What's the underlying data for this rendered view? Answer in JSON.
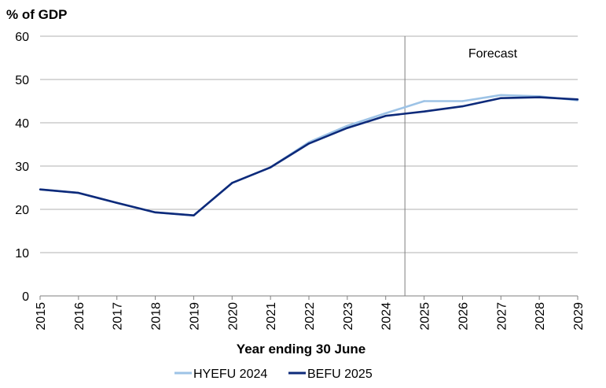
{
  "chart_data": {
    "type": "line",
    "title": "",
    "ylabel": "% of GDP",
    "xlabel": "Year ending 30 June",
    "ylim": [
      0,
      60
    ],
    "yticks": [
      0,
      10,
      20,
      30,
      40,
      50,
      60
    ],
    "x": [
      "2015",
      "2016",
      "2017",
      "2018",
      "2019",
      "2020",
      "2021",
      "2022",
      "2023",
      "2024",
      "2025",
      "2026",
      "2027",
      "2028",
      "2029"
    ],
    "series": [
      {
        "name": "HYEFU 2024",
        "color": "#9dc3e6",
        "values": [
          24.6,
          23.8,
          21.5,
          19.3,
          18.6,
          26.1,
          29.7,
          35.5,
          39.3,
          42.2,
          45.0,
          45.0,
          46.4,
          46.1,
          45.2
        ]
      },
      {
        "name": "BEFU 2025",
        "color": "#0d2a7a",
        "values": [
          24.6,
          23.8,
          21.5,
          19.3,
          18.6,
          26.1,
          29.7,
          35.2,
          38.8,
          41.6,
          42.6,
          43.8,
          45.7,
          45.9,
          45.4
        ]
      }
    ],
    "forecast_marker": {
      "between": [
        "2024",
        "2025"
      ],
      "label": "Forecast"
    },
    "grid": "horizontal",
    "legend": "bottom"
  }
}
